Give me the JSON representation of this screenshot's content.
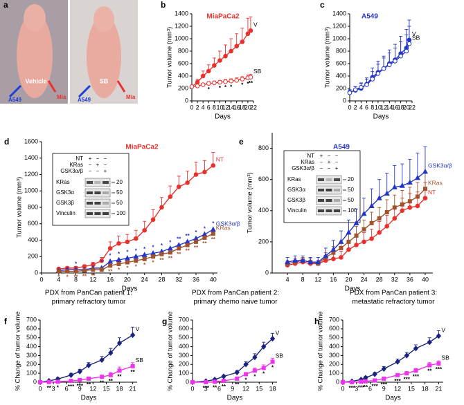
{
  "photo": {
    "panel": "a",
    "photos": [
      {
        "caption": "Vehicle",
        "left_arrow": "A549",
        "right_arrow": "Mia"
      },
      {
        "caption": "SB",
        "left_arrow": "A549",
        "right_arrow": "Mia"
      }
    ]
  },
  "chart_data": [
    {
      "type": "line",
      "panel": "b",
      "title": "MiaPaCa2",
      "title_color": "#e8312d",
      "x_label": "Days",
      "y_label": "Tumor volume (mm³)",
      "x": [
        0,
        2,
        4,
        6,
        8,
        10,
        12,
        14,
        16,
        18,
        20,
        21
      ],
      "xlim": [
        0,
        22
      ],
      "xticks": [
        0,
        2,
        4,
        6,
        8,
        10,
        12,
        14,
        16,
        18,
        20,
        22
      ],
      "ylim": [
        0,
        1400
      ],
      "yticks": [
        0,
        200,
        400,
        600,
        800,
        1000,
        1200,
        1400
      ],
      "series_label_color": "#000",
      "star_color": "#000",
      "series": [
        {
          "name": "V",
          "color": "#e8312d",
          "marker": "circle",
          "filled": true,
          "values": [
            230,
            300,
            400,
            480,
            570,
            650,
            720,
            800,
            880,
            950,
            1080,
            1130
          ],
          "errors": [
            20,
            50,
            80,
            100,
            120,
            150,
            180,
            200,
            200,
            220,
            250,
            220
          ]
        },
        {
          "name": "SB",
          "color": "#e8312d",
          "marker": "circle",
          "filled": false,
          "values": [
            230,
            240,
            260,
            280,
            290,
            300,
            310,
            320,
            330,
            350,
            370,
            380
          ],
          "errors": [
            20,
            20,
            25,
            30,
            30,
            30,
            35,
            35,
            40,
            40,
            45,
            50
          ],
          "stars": [
            null,
            null,
            null,
            "*",
            null,
            "*",
            "*",
            "*",
            null,
            "*",
            "*",
            "**"
          ],
          "stars_side": "below"
        }
      ]
    },
    {
      "type": "line",
      "panel": "c",
      "title": "A549",
      "title_color": "#2436c8",
      "x_label": "Days",
      "y_label": "Tumor volume (mm³)",
      "x": [
        0,
        2,
        4,
        6,
        8,
        10,
        12,
        14,
        16,
        18,
        20,
        21
      ],
      "xlim": [
        0,
        22
      ],
      "xticks": [
        0,
        2,
        4,
        6,
        8,
        10,
        12,
        14,
        16,
        18,
        20,
        22
      ],
      "ylim": [
        0,
        1400
      ],
      "yticks": [
        0,
        200,
        400,
        600,
        800,
        1000,
        1200,
        1400
      ],
      "series_label_color": "#000",
      "series": [
        {
          "name": "V",
          "color": "#2436c8",
          "marker": "circle",
          "filled": true,
          "values": [
            140,
            170,
            200,
            270,
            380,
            460,
            520,
            600,
            660,
            760,
            850,
            980
          ],
          "errors": [
            40,
            60,
            80,
            100,
            150,
            180,
            200,
            220,
            250,
            280,
            300,
            320
          ]
        },
        {
          "name": "SB",
          "color": "#2436c8",
          "marker": "circle",
          "filled": false,
          "values": [
            130,
            180,
            220,
            260,
            350,
            440,
            520,
            580,
            640,
            720,
            800,
            920
          ],
          "errors": [
            30,
            50,
            70,
            90,
            120,
            150,
            170,
            190,
            210,
            230,
            260,
            280
          ]
        }
      ]
    },
    {
      "type": "line",
      "panel": "d",
      "title": "MiaPaCa2",
      "title_color": "#e8312d",
      "x_label": "Days",
      "y_label": "Tumor volume (mm³)",
      "x": [
        4,
        6,
        8,
        10,
        12,
        14,
        16,
        18,
        20,
        22,
        24,
        26,
        28,
        30,
        32,
        34,
        36,
        38,
        40
      ],
      "xlim": [
        0,
        41
      ],
      "xticks": [
        0,
        4,
        8,
        12,
        16,
        20,
        24,
        28,
        32,
        36,
        40
      ],
      "ylim": [
        0,
        1600
      ],
      "yticks": [
        0,
        200,
        400,
        600,
        800,
        1000,
        1200,
        1400,
        1600
      ],
      "series": [
        {
          "name": "NT",
          "color": "#e8312d",
          "marker": "circle",
          "filled": true,
          "values": [
            50,
            60,
            60,
            80,
            100,
            150,
            300,
            360,
            380,
            420,
            520,
            650,
            800,
            930,
            1050,
            1100,
            1200,
            1230,
            1310
          ],
          "errors": [
            10,
            15,
            20,
            20,
            30,
            40,
            80,
            90,
            90,
            100,
            110,
            120,
            120,
            130,
            130,
            140,
            150,
            140,
            160
          ]
        },
        {
          "name": "GSK3α/β",
          "color": "#2436c8",
          "marker": "triangle",
          "filled": true,
          "values": [
            30,
            40,
            40,
            40,
            60,
            60,
            140,
            160,
            180,
            200,
            220,
            240,
            260,
            300,
            340,
            380,
            420,
            470,
            530
          ],
          "stars": [
            null,
            null,
            "*",
            null,
            null,
            "*",
            "*",
            "*",
            "*",
            "*",
            "*",
            "*",
            "*",
            "*",
            "**",
            "**",
            "*",
            "*",
            "*"
          ],
          "stars_side": "above"
        },
        {
          "name": "KRas",
          "color": "#a0522d",
          "marker": "square",
          "filled": true,
          "values": [
            20,
            20,
            20,
            30,
            40,
            40,
            90,
            110,
            130,
            150,
            170,
            200,
            230,
            250,
            300,
            340,
            380,
            430,
            480
          ],
          "stars": [
            "*",
            "*",
            "**",
            "**",
            "**",
            null,
            "**",
            "*",
            "*",
            "*",
            "*",
            "*",
            "**",
            "**",
            "**",
            "**",
            "**",
            "**",
            "**"
          ],
          "stars_side": "below"
        }
      ],
      "inset": {
        "rows": [
          "NT",
          "KRas",
          "GSK3α/β"
        ],
        "lanes": [
          [
            "+",
            "−",
            "−"
          ],
          [
            "−",
            "+",
            "−"
          ],
          [
            "−",
            "−",
            "+"
          ]
        ],
        "blots": [
          "KRas",
          "GSK3α",
          "GSK3β",
          "Vinculin"
        ],
        "mw": [
          20,
          50,
          50,
          100
        ]
      }
    },
    {
      "type": "line",
      "panel": "e",
      "title": "A549",
      "title_color": "#2436c8",
      "x_label": "Days",
      "y_label": "Tumor volume (mm³)",
      "x": [
        4,
        6,
        8,
        10,
        12,
        14,
        16,
        18,
        20,
        22,
        24,
        26,
        28,
        30,
        32,
        34,
        36,
        38,
        40
      ],
      "xlim": [
        0,
        42
      ],
      "xticks": [
        4,
        8,
        12,
        16,
        20,
        24,
        28,
        32,
        36,
        40
      ],
      "ylim": [
        0,
        900
      ],
      "yticks": [
        0,
        200,
        400,
        600,
        800
      ],
      "series": [
        {
          "name": "NT",
          "color": "#e8312d",
          "marker": "circle",
          "filled": true,
          "values": [
            50,
            60,
            70,
            60,
            60,
            80,
            90,
            100,
            150,
            180,
            200,
            220,
            260,
            300,
            350,
            400,
            420,
            430,
            480
          ],
          "errors": [
            20,
            20,
            20,
            20,
            20,
            30,
            30,
            40,
            50,
            50,
            60,
            60,
            70,
            70,
            80,
            80,
            90,
            90,
            100
          ]
        },
        {
          "name": "KRas",
          "color": "#a0522d",
          "marker": "square",
          "filled": true,
          "values": [
            60,
            70,
            80,
            70,
            60,
            100,
            130,
            160,
            200,
            240,
            280,
            320,
            350,
            390,
            420,
            440,
            460,
            490,
            540
          ],
          "errors": [
            20,
            20,
            20,
            20,
            20,
            30,
            40,
            40,
            50,
            60,
            60,
            70,
            70,
            80,
            80,
            90,
            90,
            90,
            100
          ]
        },
        {
          "name": "GSK3α/β",
          "color": "#2436c8",
          "marker": "triangle",
          "filled": true,
          "values": [
            70,
            80,
            80,
            70,
            70,
            110,
            150,
            200,
            260,
            320,
            380,
            430,
            480,
            510,
            550,
            560,
            580,
            610,
            650
          ],
          "errors": [
            30,
            30,
            30,
            30,
            30,
            50,
            60,
            70,
            80,
            90,
            100,
            110,
            120,
            130,
            140,
            140,
            150,
            160,
            160
          ]
        }
      ],
      "inset": {
        "rows": [
          "NT",
          "KRas",
          "GSK3α/β"
        ],
        "lanes": [
          [
            "+",
            "−",
            "−"
          ],
          [
            "−",
            "+",
            "−"
          ],
          [
            "−",
            "−",
            "+"
          ]
        ],
        "blots": [
          "KRas",
          "GSK3α",
          "GSK3β",
          "Vinculin"
        ],
        "mw": [
          20,
          50,
          50,
          100
        ]
      }
    },
    {
      "type": "line",
      "panel": "f",
      "title": "PDX from PanCan patient 1:",
      "subtitle": "primary refractory tumor",
      "title_color": "#000",
      "x_label": "Days",
      "y_label": "% Change of tumor volume",
      "x": [
        0,
        2,
        4,
        7,
        9,
        11,
        14,
        16,
        18,
        21
      ],
      "xlim": [
        0,
        22
      ],
      "xticks": [
        0,
        3,
        6,
        9,
        12,
        15,
        18,
        21
      ],
      "ylim": [
        0,
        700
      ],
      "yticks": [
        0,
        100,
        200,
        300,
        400,
        500,
        600,
        700
      ],
      "series_label_color": "#000",
      "star_color": "#000",
      "series": [
        {
          "name": "V",
          "color": "#1a237e",
          "marker": "diamond",
          "filled": true,
          "values": [
            0,
            15,
            35,
            80,
            120,
            190,
            250,
            330,
            440,
            530
          ],
          "errors": [
            0,
            10,
            15,
            20,
            25,
            30,
            40,
            50,
            60,
            90
          ]
        },
        {
          "name": "SB",
          "color": "#ee33ee",
          "marker": "square",
          "filled": true,
          "values": [
            0,
            2,
            5,
            15,
            25,
            40,
            60,
            80,
            130,
            180
          ],
          "errors": [
            0,
            3,
            5,
            8,
            10,
            15,
            20,
            30,
            40,
            40
          ],
          "stars": [
            null,
            "**",
            "*",
            "***",
            "***",
            "**",
            "**",
            "**",
            "**",
            "**"
          ],
          "stars_side": "below"
        }
      ]
    },
    {
      "type": "line",
      "panel": "g",
      "title": "PDX from PanCan patient 2:",
      "subtitle": "primary chemo naive tumor",
      "title_color": "#000",
      "x_label": "Days",
      "y_label": "% Change of tumor volume",
      "x": [
        0,
        3,
        5,
        7,
        10,
        12,
        14,
        16,
        18
      ],
      "xlim": [
        0,
        19
      ],
      "xticks": [
        0,
        3,
        6,
        9,
        12,
        15,
        18
      ],
      "ylim": [
        0,
        700
      ],
      "yticks": [
        0,
        100,
        200,
        300,
        400,
        500,
        600,
        700
      ],
      "series_label_color": "#000",
      "star_color": "#000",
      "series": [
        {
          "name": "V",
          "color": "#1a237e",
          "marker": "diamond",
          "filled": true,
          "values": [
            0,
            12,
            30,
            65,
            110,
            200,
            280,
            400,
            490
          ],
          "errors": [
            0,
            8,
            12,
            15,
            20,
            30,
            40,
            50,
            60
          ]
        },
        {
          "name": "SB",
          "color": "#ee33ee",
          "marker": "square",
          "filled": true,
          "values": [
            0,
            0,
            5,
            15,
            40,
            90,
            130,
            160,
            230
          ],
          "errors": [
            0,
            3,
            5,
            8,
            12,
            20,
            30,
            35,
            40
          ],
          "stars": [
            null,
            "***",
            "**",
            "**",
            "**",
            "*",
            "*",
            "*",
            "*"
          ],
          "stars_side": "below"
        }
      ]
    },
    {
      "type": "line",
      "panel": "h",
      "title": "PDX from PanCan patient 3:",
      "subtitle": "metastatic refractory tumor",
      "title_color": "#000",
      "x_label": "Days",
      "y_label": "% Change of tumor volume",
      "x": [
        0,
        2,
        4,
        5,
        7,
        9,
        12,
        14,
        16,
        19,
        21
      ],
      "xlim": [
        0,
        22
      ],
      "xticks": [
        0,
        3,
        6,
        9,
        12,
        15,
        18,
        21
      ],
      "ylim": [
        0,
        700
      ],
      "yticks": [
        0,
        100,
        200,
        300,
        400,
        500,
        600,
        700
      ],
      "series_label_color": "#000",
      "star_color": "#000",
      "series": [
        {
          "name": "V",
          "color": "#1a237e",
          "marker": "diamond",
          "filled": true,
          "values": [
            0,
            10,
            30,
            50,
            90,
            150,
            230,
            300,
            380,
            450,
            520
          ],
          "errors": [
            0,
            8,
            10,
            15,
            20,
            25,
            30,
            35,
            40,
            50,
            60
          ]
        },
        {
          "name": "SB",
          "color": "#ee33ee",
          "marker": "square",
          "filled": true,
          "values": [
            0,
            0,
            5,
            10,
            20,
            40,
            80,
            100,
            130,
            190,
            210
          ],
          "errors": [
            0,
            2,
            4,
            6,
            8,
            12,
            15,
            20,
            25,
            30,
            30
          ],
          "stars": [
            null,
            "***",
            "***",
            "**",
            "***",
            "***",
            "***",
            "***",
            "***",
            "**",
            "***"
          ],
          "stars_side": "below"
        }
      ]
    }
  ]
}
